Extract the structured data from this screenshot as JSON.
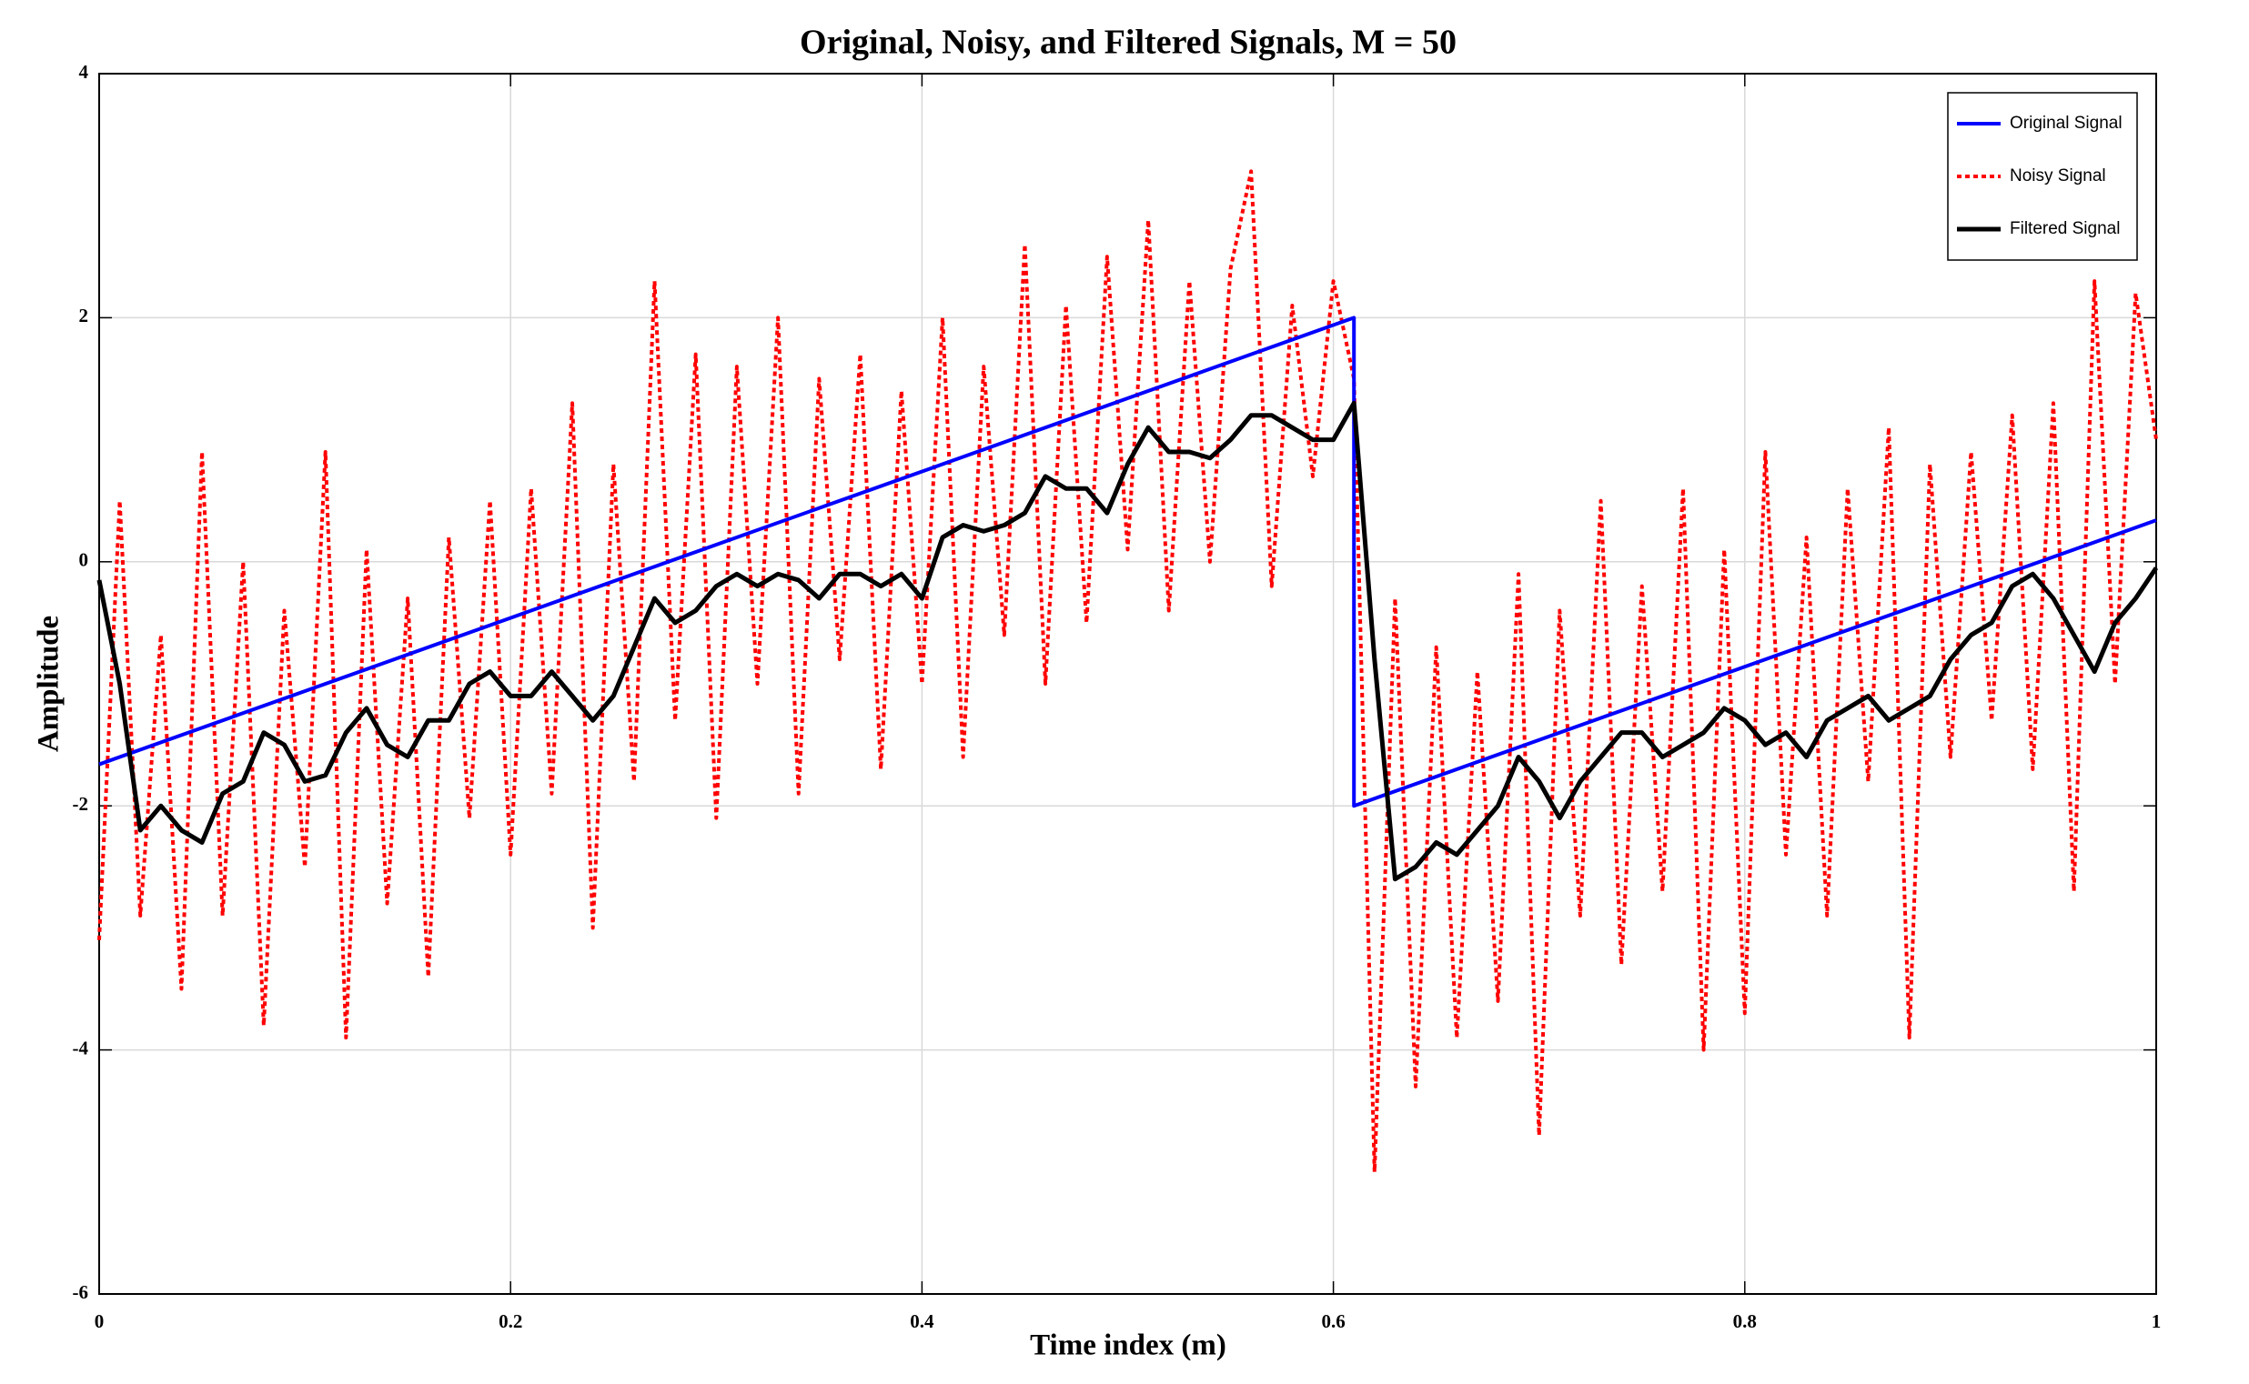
{
  "chart_data": {
    "type": "line",
    "title": "Original, Noisy, and Filtered Signals, M = 50",
    "x_label": "Time index (m)",
    "y_label": "Amplitude",
    "xlim": [
      0,
      1
    ],
    "ylim": [
      -6,
      4
    ],
    "xticks": [
      0,
      0.2,
      0.4,
      0.6,
      0.8,
      1
    ],
    "yticks": [
      -6,
      -4,
      -2,
      0,
      2,
      4
    ],
    "grid": true,
    "legend": "upper right",
    "x": [
      0,
      0.01,
      0.02,
      0.03,
      0.04,
      0.05,
      0.06,
      0.07,
      0.08,
      0.09,
      0.1,
      0.11,
      0.12,
      0.13,
      0.14,
      0.15,
      0.16,
      0.17,
      0.18,
      0.19,
      0.2,
      0.21,
      0.22,
      0.23,
      0.24,
      0.25,
      0.26,
      0.27,
      0.28,
      0.29,
      0.3,
      0.31,
      0.32,
      0.33,
      0.34,
      0.35,
      0.36,
      0.37,
      0.38,
      0.39,
      0.4,
      0.41,
      0.42,
      0.43,
      0.44,
      0.45,
      0.46,
      0.47,
      0.48,
      0.49,
      0.5,
      0.51,
      0.52,
      0.53,
      0.54,
      0.55,
      0.56,
      0.57,
      0.58,
      0.59,
      0.6,
      0.61,
      0.62,
      0.63,
      0.64,
      0.65,
      0.66,
      0.67,
      0.68,
      0.69,
      0.7,
      0.71,
      0.72,
      0.73,
      0.74,
      0.75,
      0.76,
      0.77,
      0.78,
      0.79,
      0.8,
      0.81,
      0.82,
      0.83,
      0.84,
      0.85,
      0.86,
      0.87,
      0.88,
      0.89,
      0.9,
      0.91,
      0.92,
      0.93,
      0.94,
      0.95,
      0.96,
      0.97,
      0.98,
      0.99,
      1
    ],
    "series": [
      {
        "name": "Original Signal",
        "color": "#0000ff",
        "line_style": "solid",
        "x": [
          0,
          0.61,
          0.61,
          1
        ],
        "values": [
          -1.66,
          2,
          -2,
          0.34
        ]
      },
      {
        "name": "Noisy Signal",
        "color": "#ff0000",
        "line_style": "dotted",
        "values": [
          -3.1,
          0.5,
          -2.9,
          -0.6,
          -3.5,
          0.9,
          -2.9,
          0.0,
          -3.8,
          -0.4,
          -2.5,
          0.9,
          -3.9,
          0.1,
          -2.8,
          -0.3,
          -3.4,
          0.2,
          -2.1,
          0.5,
          -2.4,
          0.6,
          -1.9,
          1.3,
          -3.0,
          0.8,
          -1.8,
          2.3,
          -1.3,
          1.7,
          -2.1,
          1.6,
          -1.0,
          2.0,
          -1.9,
          1.5,
          -0.8,
          1.7,
          -1.7,
          1.4,
          -1.0,
          2.0,
          -1.6,
          1.6,
          -0.6,
          2.6,
          -1.0,
          2.1,
          -0.5,
          2.5,
          0.1,
          2.8,
          -0.4,
          2.3,
          0.0,
          2.4,
          3.2,
          -0.2,
          2.1,
          0.7,
          2.3,
          1.5,
          -5.0,
          -0.3,
          -4.3,
          -0.7,
          -3.9,
          -0.9,
          -3.6,
          -0.1,
          -4.7,
          -0.4,
          -2.9,
          0.5,
          -3.3,
          -0.2,
          -2.7,
          0.6,
          -4.0,
          0.1,
          -3.7,
          0.9,
          -2.4,
          0.2,
          -2.9,
          0.6,
          -1.8,
          1.1,
          -3.9,
          0.8,
          -1.6,
          0.9,
          -1.3,
          1.2,
          -1.7,
          1.3,
          -2.7,
          2.3,
          -1.0,
          2.2,
          1.0
        ]
      },
      {
        "name": "Filtered Signal",
        "color": "#000000",
        "line_style": "solid",
        "values": [
          -0.15,
          -1.0,
          -2.2,
          -2.0,
          -2.2,
          -2.3,
          -1.9,
          -1.8,
          -1.4,
          -1.5,
          -1.8,
          -1.75,
          -1.4,
          -1.2,
          -1.5,
          -1.6,
          -1.3,
          -1.3,
          -1.0,
          -0.9,
          -1.1,
          -1.1,
          -0.9,
          -1.1,
          -1.3,
          -1.1,
          -0.7,
          -0.3,
          -0.5,
          -0.4,
          -0.2,
          -0.1,
          -0.2,
          -0.1,
          -0.15,
          -0.3,
          -0.1,
          -0.1,
          -0.2,
          -0.1,
          -0.3,
          0.2,
          0.3,
          0.25,
          0.3,
          0.4,
          0.7,
          0.6,
          0.6,
          0.4,
          0.8,
          1.1,
          0.9,
          0.9,
          0.85,
          1.0,
          1.2,
          1.2,
          1.1,
          1.0,
          1.0,
          1.3,
          -0.8,
          -2.6,
          -2.5,
          -2.3,
          -2.4,
          -2.2,
          -2.0,
          -1.6,
          -1.8,
          -2.1,
          -1.8,
          -1.6,
          -1.4,
          -1.4,
          -1.6,
          -1.5,
          -1.4,
          -1.2,
          -1.3,
          -1.5,
          -1.4,
          -1.6,
          -1.3,
          -1.2,
          -1.1,
          -1.3,
          -1.2,
          -1.1,
          -0.8,
          -0.6,
          -0.5,
          -0.2,
          -0.1,
          -0.3,
          -0.6,
          -0.9,
          -0.5,
          -0.3,
          -0.05
        ]
      }
    ]
  }
}
